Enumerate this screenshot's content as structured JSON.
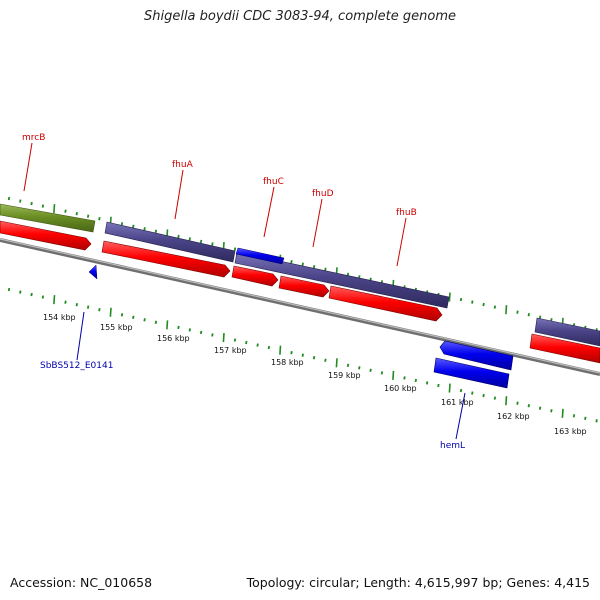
{
  "title": "Shigella boydii CDC 3083-94, complete genome",
  "footer": {
    "accession": "Accession: NC_010658",
    "summary": "Topology: circular; Length: 4,615,997 bp; Genes: 4,415"
  },
  "colors": {
    "forward_cds": "#ff0000",
    "reverse_cds": "#0000ee",
    "purple_track": "#4b4488",
    "olive_track": "#6b8e23",
    "backbone": "#888888",
    "ticks": "#228b22",
    "label_red": "#cc0000",
    "label_blue": "#0000aa"
  },
  "scale_labels": [
    "154 kbp",
    "155 kbp",
    "156 kbp",
    "157 kbp",
    "158 kbp",
    "159 kbp",
    "160 kbp",
    "161 kbp",
    "162 kbp",
    "163 kbp"
  ],
  "gene_labels_top": [
    "mrcB",
    "fhuA",
    "fhuC",
    "fhuD",
    "fhuB"
  ],
  "gene_labels_bottom": [
    "SbBS512_E0141",
    "hemL"
  ]
}
